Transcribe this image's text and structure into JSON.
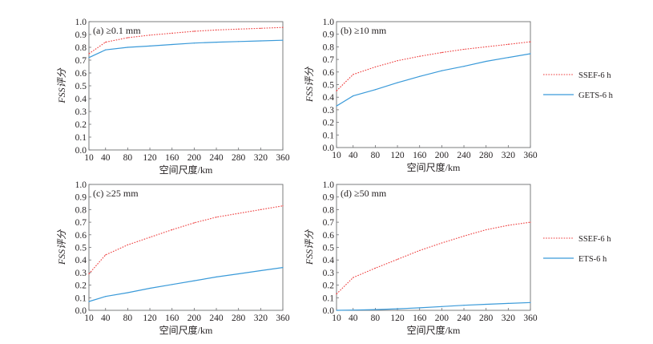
{
  "colors": {
    "ssef": "#ee3b3b",
    "ets": "#3a9ad9",
    "axis": "#231f20",
    "frame": "#6d6e71"
  },
  "chart_data": [
    {
      "type": "line",
      "panel": "(a)",
      "title": "(a) ≥0.1 mm",
      "xlabel": "空间尺度/km",
      "ylabel": "FSS评分",
      "xlim": [
        10,
        360
      ],
      "ylim": [
        0,
        1.0
      ],
      "x_ticks": [
        "10",
        "40",
        "80",
        "120",
        "160",
        "200",
        "240",
        "280",
        "320",
        "360"
      ],
      "y_ticks": [
        "0.0",
        "0.1",
        "0.2",
        "0.3",
        "0.4",
        "0.5",
        "0.6",
        "0.7",
        "0.8",
        "0.9",
        "1.0"
      ],
      "x": [
        10,
        40,
        80,
        120,
        160,
        200,
        240,
        280,
        320,
        360
      ],
      "series": [
        {
          "name": "SSEF-6 h",
          "style": "dotted",
          "values": [
            0.75,
            0.84,
            0.875,
            0.895,
            0.91,
            0.925,
            0.935,
            0.942,
            0.948,
            0.955
          ]
        },
        {
          "name": "GETS-6 h",
          "style": "solid",
          "values": [
            0.72,
            0.78,
            0.8,
            0.81,
            0.822,
            0.833,
            0.84,
            0.845,
            0.85,
            0.855
          ]
        }
      ],
      "legend": {
        "position": "outside-right",
        "entries": []
      }
    },
    {
      "type": "line",
      "panel": "(b)",
      "title": "(b) ≥10 mm",
      "xlabel": "空间尺度/km",
      "ylabel": "FSS评分",
      "xlim": [
        10,
        360
      ],
      "ylim": [
        0,
        1.0
      ],
      "x_ticks": [
        "10",
        "40",
        "80",
        "120",
        "160",
        "200",
        "240",
        "280",
        "320",
        "360"
      ],
      "y_ticks": [
        "0.0",
        "0.1",
        "0.2",
        "0.3",
        "0.4",
        "0.5",
        "0.6",
        "0.7",
        "0.8",
        "0.9",
        "1.0"
      ],
      "x": [
        10,
        40,
        80,
        120,
        160,
        200,
        240,
        280,
        320,
        360
      ],
      "series": [
        {
          "name": "SSEF-6 h",
          "style": "dotted",
          "values": [
            0.45,
            0.58,
            0.64,
            0.69,
            0.725,
            0.755,
            0.78,
            0.8,
            0.82,
            0.84
          ]
        },
        {
          "name": "GETS-6 h",
          "style": "solid",
          "values": [
            0.33,
            0.41,
            0.46,
            0.515,
            0.565,
            0.61,
            0.645,
            0.685,
            0.715,
            0.745
          ]
        }
      ],
      "legend": {
        "position": "outside-right",
        "entries": [
          "SSEF-6 h",
          "GETS-6 h"
        ]
      }
    },
    {
      "type": "line",
      "panel": "(c)",
      "title": "(c) ≥25 mm",
      "xlabel": "空间尺度/km",
      "ylabel": "FSS评分",
      "xlim": [
        10,
        360
      ],
      "ylim": [
        0,
        1.0
      ],
      "x_ticks": [
        "10",
        "40",
        "80",
        "120",
        "160",
        "200",
        "240",
        "280",
        "320",
        "360"
      ],
      "y_ticks": [
        "0.0",
        "0.1",
        "0.2",
        "0.3",
        "0.4",
        "0.5",
        "0.6",
        "0.7",
        "0.8",
        "0.9",
        "1.0"
      ],
      "x": [
        10,
        40,
        80,
        120,
        160,
        200,
        240,
        280,
        320,
        360
      ],
      "series": [
        {
          "name": "SSEF-6 h",
          "style": "dotted",
          "values": [
            0.29,
            0.44,
            0.52,
            0.58,
            0.64,
            0.695,
            0.74,
            0.77,
            0.8,
            0.83
          ]
        },
        {
          "name": "ETS-6 h",
          "style": "solid",
          "values": [
            0.07,
            0.11,
            0.14,
            0.175,
            0.205,
            0.235,
            0.265,
            0.29,
            0.315,
            0.34
          ]
        }
      ],
      "legend": {
        "position": "outside-right",
        "entries": []
      }
    },
    {
      "type": "line",
      "panel": "(d)",
      "title": "(d) ≥50 mm",
      "xlabel": "空间尺度/km",
      "ylabel": "FSS评分",
      "xlim": [
        10,
        360
      ],
      "ylim": [
        0,
        1.0
      ],
      "x_ticks": [
        "10",
        "40",
        "80",
        "120",
        "160",
        "200",
        "240",
        "280",
        "320",
        "360"
      ],
      "y_ticks": [
        "0.0",
        "0.1",
        "0.2",
        "0.3",
        "0.4",
        "0.5",
        "0.6",
        "0.7",
        "0.8",
        "0.9",
        "1.0"
      ],
      "x": [
        10,
        40,
        80,
        120,
        160,
        200,
        240,
        280,
        320,
        360
      ],
      "series": [
        {
          "name": "SSEF-6 h",
          "style": "dotted",
          "values": [
            0.13,
            0.26,
            0.335,
            0.405,
            0.475,
            0.535,
            0.59,
            0.64,
            0.675,
            0.7
          ]
        },
        {
          "name": "ETS-6 h",
          "style": "solid",
          "values": [
            0.0,
            0.002,
            0.006,
            0.012,
            0.02,
            0.03,
            0.04,
            0.048,
            0.055,
            0.062
          ]
        }
      ],
      "legend": {
        "position": "outside-right",
        "entries": [
          "SSEF-6 h",
          "ETS-6 h"
        ]
      }
    }
  ]
}
